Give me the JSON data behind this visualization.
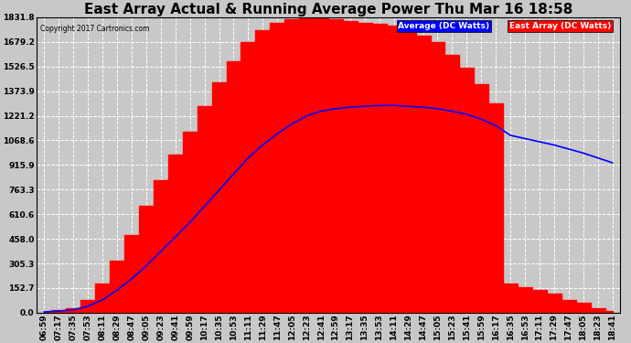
{
  "title": "East Array Actual & Running Average Power Thu Mar 16 18:58",
  "copyright": "Copyright 2017 Cartronics.com",
  "legend_labels": [
    "Average (DC Watts)",
    "East Array (DC Watts)"
  ],
  "yticks": [
    0.0,
    152.7,
    305.3,
    458.0,
    610.6,
    763.3,
    915.9,
    1068.6,
    1221.2,
    1373.9,
    1526.5,
    1679.2,
    1831.8
  ],
  "ylim": [
    0.0,
    1831.8
  ],
  "background_color": "#c8c8c8",
  "plot_bg_color": "#c8c8c8",
  "grid_color": "white",
  "bar_color": "red",
  "line_color": "blue",
  "title_fontsize": 11,
  "tick_fontsize": 6.5,
  "x_labels": [
    "06:59",
    "07:17",
    "07:35",
    "07:53",
    "08:11",
    "08:29",
    "08:47",
    "09:05",
    "09:23",
    "09:41",
    "09:59",
    "10:17",
    "10:35",
    "10:53",
    "11:11",
    "11:29",
    "11:47",
    "12:05",
    "12:23",
    "12:41",
    "12:59",
    "13:17",
    "13:35",
    "13:53",
    "14:11",
    "14:29",
    "14:47",
    "15:05",
    "15:23",
    "15:41",
    "15:59",
    "16:17",
    "16:35",
    "16:53",
    "17:11",
    "17:29",
    "17:47",
    "18:05",
    "18:23",
    "18:41"
  ],
  "east_power": [
    5,
    15,
    30,
    80,
    180,
    320,
    480,
    660,
    820,
    980,
    1120,
    1280,
    1430,
    1560,
    1680,
    1750,
    1800,
    1820,
    1831,
    1831,
    1820,
    1810,
    1800,
    1790,
    1780,
    1750,
    1720,
    1680,
    1600,
    1520,
    1420,
    1300,
    180,
    160,
    140,
    120,
    80,
    60,
    30,
    10
  ],
  "avg_power": [
    5,
    10,
    18,
    40,
    80,
    140,
    210,
    290,
    380,
    470,
    560,
    660,
    760,
    860,
    960,
    1040,
    1110,
    1170,
    1220,
    1250,
    1265,
    1275,
    1280,
    1285,
    1285,
    1280,
    1275,
    1265,
    1250,
    1230,
    1200,
    1160,
    1100,
    1080,
    1060,
    1040,
    1015,
    990,
    960,
    930
  ]
}
